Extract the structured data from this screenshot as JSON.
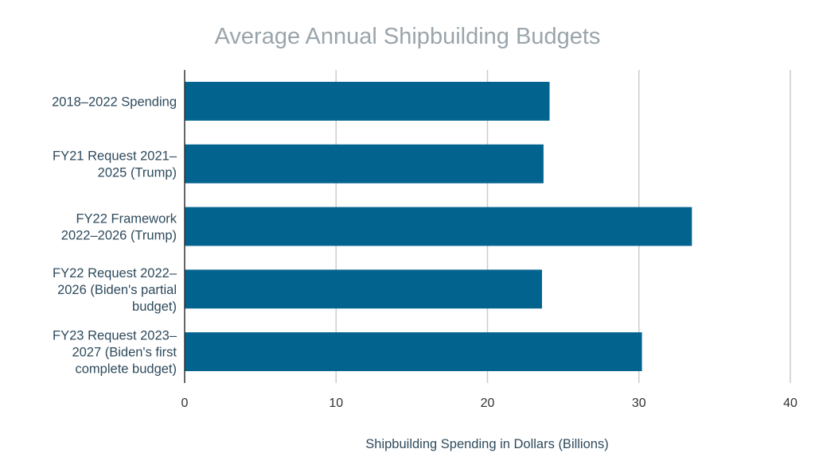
{
  "chart_data": {
    "type": "bar",
    "orientation": "horizontal",
    "title": "Average Annual Shipbuilding Budgets",
    "xlabel": "Shipbuilding Spending in Dollars (Billions)",
    "ylabel": "",
    "categories": [
      [
        "2018–2022 Spending"
      ],
      [
        "FY21 Request 2021–",
        "2025 (Trump)"
      ],
      [
        "FY22 Framework",
        "2022–2026 (Trump)"
      ],
      [
        "FY22 Request 2022–",
        "2026 (Biden's partial",
        "budget)"
      ],
      [
        "FY23 Request 2023–",
        "2027 (Biden's first",
        "complete budget)"
      ]
    ],
    "values": [
      24.1,
      23.7,
      33.5,
      23.6,
      30.2
    ],
    "xlim": [
      0,
      40
    ],
    "xticks": [
      0,
      10,
      20,
      30,
      40
    ],
    "grid": true,
    "legend": "none",
    "bar_color": "#02638f",
    "grid_color": "#cccccc",
    "axis_color": "#333333"
  }
}
